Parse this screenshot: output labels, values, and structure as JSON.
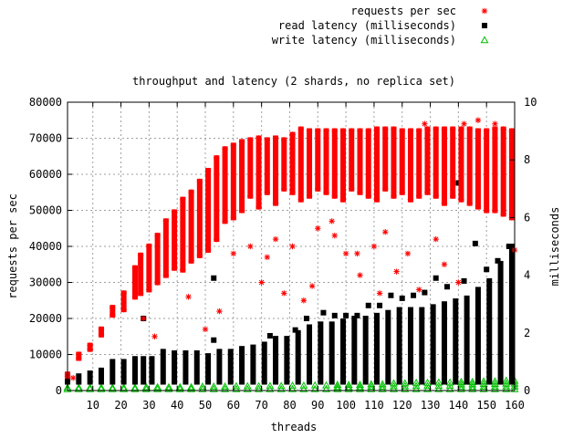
{
  "chart_data": {
    "type": "scatter",
    "title": "throughput and latency (2 shards, no replica set)",
    "xlabel": "threads",
    "ylabel": "requests per sec",
    "y2label": "milliseconds",
    "xlim": [
      1,
      160
    ],
    "ylim": [
      0,
      80000
    ],
    "y2lim": [
      0,
      10
    ],
    "xticks": [
      10,
      20,
      30,
      40,
      50,
      60,
      70,
      80,
      90,
      100,
      110,
      120,
      130,
      140,
      150,
      160
    ],
    "yticks": [
      0,
      10000,
      20000,
      30000,
      40000,
      50000,
      60000,
      70000,
      80000
    ],
    "y2ticks": [
      0,
      2,
      4,
      6,
      8,
      10
    ],
    "grid": true,
    "legend_position": "top-right",
    "colors": {
      "requests": "#ff0000",
      "read": "#000000",
      "write": "#00c000"
    },
    "series": [
      {
        "name": "requests per sec",
        "axis": "y",
        "marker": "asterisk",
        "ranges": [
          [
            1,
            4000,
            4500
          ],
          [
            5,
            9000,
            10000
          ],
          [
            9,
            11500,
            12500
          ],
          [
            13,
            15500,
            17000
          ],
          [
            17,
            21000,
            23000
          ],
          [
            21,
            22500,
            27000
          ],
          [
            25,
            26000,
            34000
          ],
          [
            27,
            27000,
            37500
          ],
          [
            30,
            28000,
            40000
          ],
          [
            33,
            30000,
            43000
          ],
          [
            36,
            32000,
            47000
          ],
          [
            39,
            34000,
            49500
          ],
          [
            42,
            33500,
            53000
          ],
          [
            45,
            36000,
            55000
          ],
          [
            48,
            37500,
            58000
          ],
          [
            51,
            39000,
            61000
          ],
          [
            54,
            42000,
            64500
          ],
          [
            57,
            47000,
            67000
          ],
          [
            60,
            48000,
            68000
          ],
          [
            63,
            50000,
            69000
          ],
          [
            66,
            54000,
            69500
          ],
          [
            69,
            51000,
            70000
          ],
          [
            72,
            55000,
            69500
          ],
          [
            75,
            52000,
            70000
          ],
          [
            78,
            56000,
            69500
          ],
          [
            81,
            55000,
            71000
          ],
          [
            84,
            53000,
            72500
          ],
          [
            87,
            54000,
            72000
          ],
          [
            90,
            56000,
            72000
          ],
          [
            93,
            55000,
            72000
          ],
          [
            96,
            54000,
            72000
          ],
          [
            99,
            53000,
            72000
          ],
          [
            102,
            56000,
            72000
          ],
          [
            105,
            55000,
            72000
          ],
          [
            108,
            54000,
            72000
          ],
          [
            111,
            53000,
            72500
          ],
          [
            114,
            56000,
            72500
          ],
          [
            117,
            54000,
            72500
          ],
          [
            120,
            55000,
            72000
          ],
          [
            123,
            53000,
            72000
          ],
          [
            126,
            54000,
            72000
          ],
          [
            129,
            55000,
            72500
          ],
          [
            132,
            54000,
            72500
          ],
          [
            135,
            52000,
            72500
          ],
          [
            138,
            54000,
            72500
          ],
          [
            141,
            53000,
            72500
          ],
          [
            144,
            52000,
            72500
          ],
          [
            147,
            51000,
            72000
          ],
          [
            150,
            50000,
            72000
          ],
          [
            153,
            50000,
            72500
          ],
          [
            156,
            49000,
            72500
          ],
          [
            159,
            48000,
            72000
          ]
        ],
        "outliers": [
          [
            3,
            3500
          ],
          [
            28,
            20000
          ],
          [
            32,
            15000
          ],
          [
            44,
            26000
          ],
          [
            50,
            17000
          ],
          [
            55,
            22000
          ],
          [
            60,
            38000
          ],
          [
            66,
            40000
          ],
          [
            72,
            37000
          ],
          [
            75,
            42000
          ],
          [
            81,
            40000
          ],
          [
            85,
            25000
          ],
          [
            90,
            45000
          ],
          [
            96,
            43000
          ],
          [
            100,
            38000
          ],
          [
            105,
            32000
          ],
          [
            110,
            40000
          ],
          [
            112,
            27000
          ],
          [
            118,
            33000
          ],
          [
            122,
            38000
          ],
          [
            126,
            28000
          ],
          [
            132,
            42000
          ],
          [
            135,
            35000
          ],
          [
            140,
            30000
          ],
          [
            142,
            74000
          ],
          [
            147,
            75000
          ],
          [
            153,
            74000
          ],
          [
            160,
            39000
          ],
          [
            128,
            74000
          ],
          [
            114,
            44000
          ],
          [
            104,
            38000
          ],
          [
            95,
            47000
          ],
          [
            88,
            29000
          ],
          [
            78,
            27000
          ],
          [
            70,
            30000
          ]
        ]
      },
      {
        "name": "read latency (milliseconds)",
        "axis": "y2",
        "marker": "filled-square",
        "ranges": [
          [
            1,
            0.3,
            0.5
          ],
          [
            5,
            0.3,
            0.5
          ],
          [
            9,
            0.3,
            0.6
          ],
          [
            13,
            0.3,
            0.7
          ],
          [
            17,
            0.3,
            1.0
          ],
          [
            21,
            0.3,
            1.0
          ],
          [
            25,
            0.3,
            1.1
          ],
          [
            28,
            0.3,
            1.1
          ],
          [
            31,
            0.3,
            1.1
          ],
          [
            35,
            0.3,
            1.35
          ],
          [
            39,
            0.3,
            1.3
          ],
          [
            43,
            0.3,
            1.3
          ],
          [
            47,
            0.3,
            1.3
          ],
          [
            51,
            0.3,
            1.2
          ],
          [
            55,
            0.3,
            1.35
          ],
          [
            59,
            0.3,
            1.35
          ],
          [
            63,
            0.3,
            1.45
          ],
          [
            67,
            0.3,
            1.5
          ],
          [
            71,
            0.3,
            1.6
          ],
          [
            75,
            0.3,
            1.8
          ],
          [
            79,
            0.3,
            1.8
          ],
          [
            83,
            0.3,
            2.0
          ],
          [
            87,
            0.3,
            2.2
          ],
          [
            91,
            0.3,
            2.3
          ],
          [
            95,
            0.3,
            2.3
          ],
          [
            99,
            0.3,
            2.4
          ],
          [
            103,
            0.3,
            2.5
          ],
          [
            107,
            0.3,
            2.5
          ],
          [
            111,
            0.3,
            2.6
          ],
          [
            115,
            0.3,
            2.7
          ],
          [
            119,
            0.3,
            2.8
          ],
          [
            123,
            0.3,
            2.8
          ],
          [
            127,
            0.3,
            2.8
          ],
          [
            131,
            0.3,
            2.9
          ],
          [
            135,
            0.3,
            3.0
          ],
          [
            139,
            0.3,
            3.1
          ],
          [
            143,
            0.3,
            3.2
          ],
          [
            147,
            0.3,
            3.5
          ],
          [
            151,
            0.3,
            3.8
          ],
          [
            155,
            0.3,
            4.4
          ],
          [
            159,
            0.3,
            5.0
          ]
        ],
        "outliers": [
          [
            28,
            2.5
          ],
          [
            53,
            3.9
          ],
          [
            53,
            1.75
          ],
          [
            73,
            1.9
          ],
          [
            82,
            2.1
          ],
          [
            86,
            2.5
          ],
          [
            92,
            2.7
          ],
          [
            96,
            2.6
          ],
          [
            100,
            2.6
          ],
          [
            104,
            2.6
          ],
          [
            108,
            2.95
          ],
          [
            112,
            2.95
          ],
          [
            116,
            3.3
          ],
          [
            120,
            3.2
          ],
          [
            124,
            3.3
          ],
          [
            128,
            3.4
          ],
          [
            132,
            3.9
          ],
          [
            136,
            3.6
          ],
          [
            140,
            7.2
          ],
          [
            142,
            3.8
          ],
          [
            146,
            5.1
          ],
          [
            150,
            4.2
          ],
          [
            154,
            4.5
          ],
          [
            158,
            5.0
          ]
        ]
      },
      {
        "name": "write latency (milliseconds)",
        "axis": "y2",
        "marker": "open-triangle",
        "ranges": [
          [
            1,
            0.05,
            0.1
          ],
          [
            5,
            0.05,
            0.1
          ],
          [
            9,
            0.05,
            0.1
          ],
          [
            13,
            0.05,
            0.1
          ],
          [
            17,
            0.05,
            0.1
          ],
          [
            21,
            0.05,
            0.1
          ],
          [
            25,
            0.05,
            0.1
          ],
          [
            29,
            0.05,
            0.12
          ],
          [
            33,
            0.05,
            0.12
          ],
          [
            37,
            0.05,
            0.12
          ],
          [
            41,
            0.05,
            0.12
          ],
          [
            45,
            0.05,
            0.12
          ],
          [
            49,
            0.05,
            0.14
          ],
          [
            53,
            0.05,
            0.14
          ],
          [
            57,
            0.05,
            0.14
          ],
          [
            61,
            0.05,
            0.15
          ],
          [
            65,
            0.05,
            0.15
          ],
          [
            69,
            0.05,
            0.15
          ],
          [
            73,
            0.05,
            0.16
          ],
          [
            77,
            0.05,
            0.16
          ],
          [
            81,
            0.05,
            0.17
          ],
          [
            85,
            0.05,
            0.17
          ],
          [
            89,
            0.05,
            0.18
          ],
          [
            93,
            0.05,
            0.18
          ],
          [
            97,
            0.05,
            0.2
          ],
          [
            101,
            0.05,
            0.2
          ],
          [
            105,
            0.05,
            0.2
          ],
          [
            109,
            0.05,
            0.22
          ],
          [
            113,
            0.05,
            0.22
          ],
          [
            117,
            0.05,
            0.25
          ],
          [
            121,
            0.05,
            0.25
          ],
          [
            125,
            0.05,
            0.27
          ],
          [
            129,
            0.05,
            0.27
          ],
          [
            133,
            0.05,
            0.28
          ],
          [
            137,
            0.05,
            0.28
          ],
          [
            141,
            0.05,
            0.3
          ],
          [
            145,
            0.05,
            0.3
          ],
          [
            149,
            0.05,
            0.32
          ],
          [
            153,
            0.05,
            0.32
          ],
          [
            157,
            0.05,
            0.34
          ],
          [
            160,
            0.05,
            0.34
          ]
        ],
        "outliers": []
      }
    ]
  }
}
